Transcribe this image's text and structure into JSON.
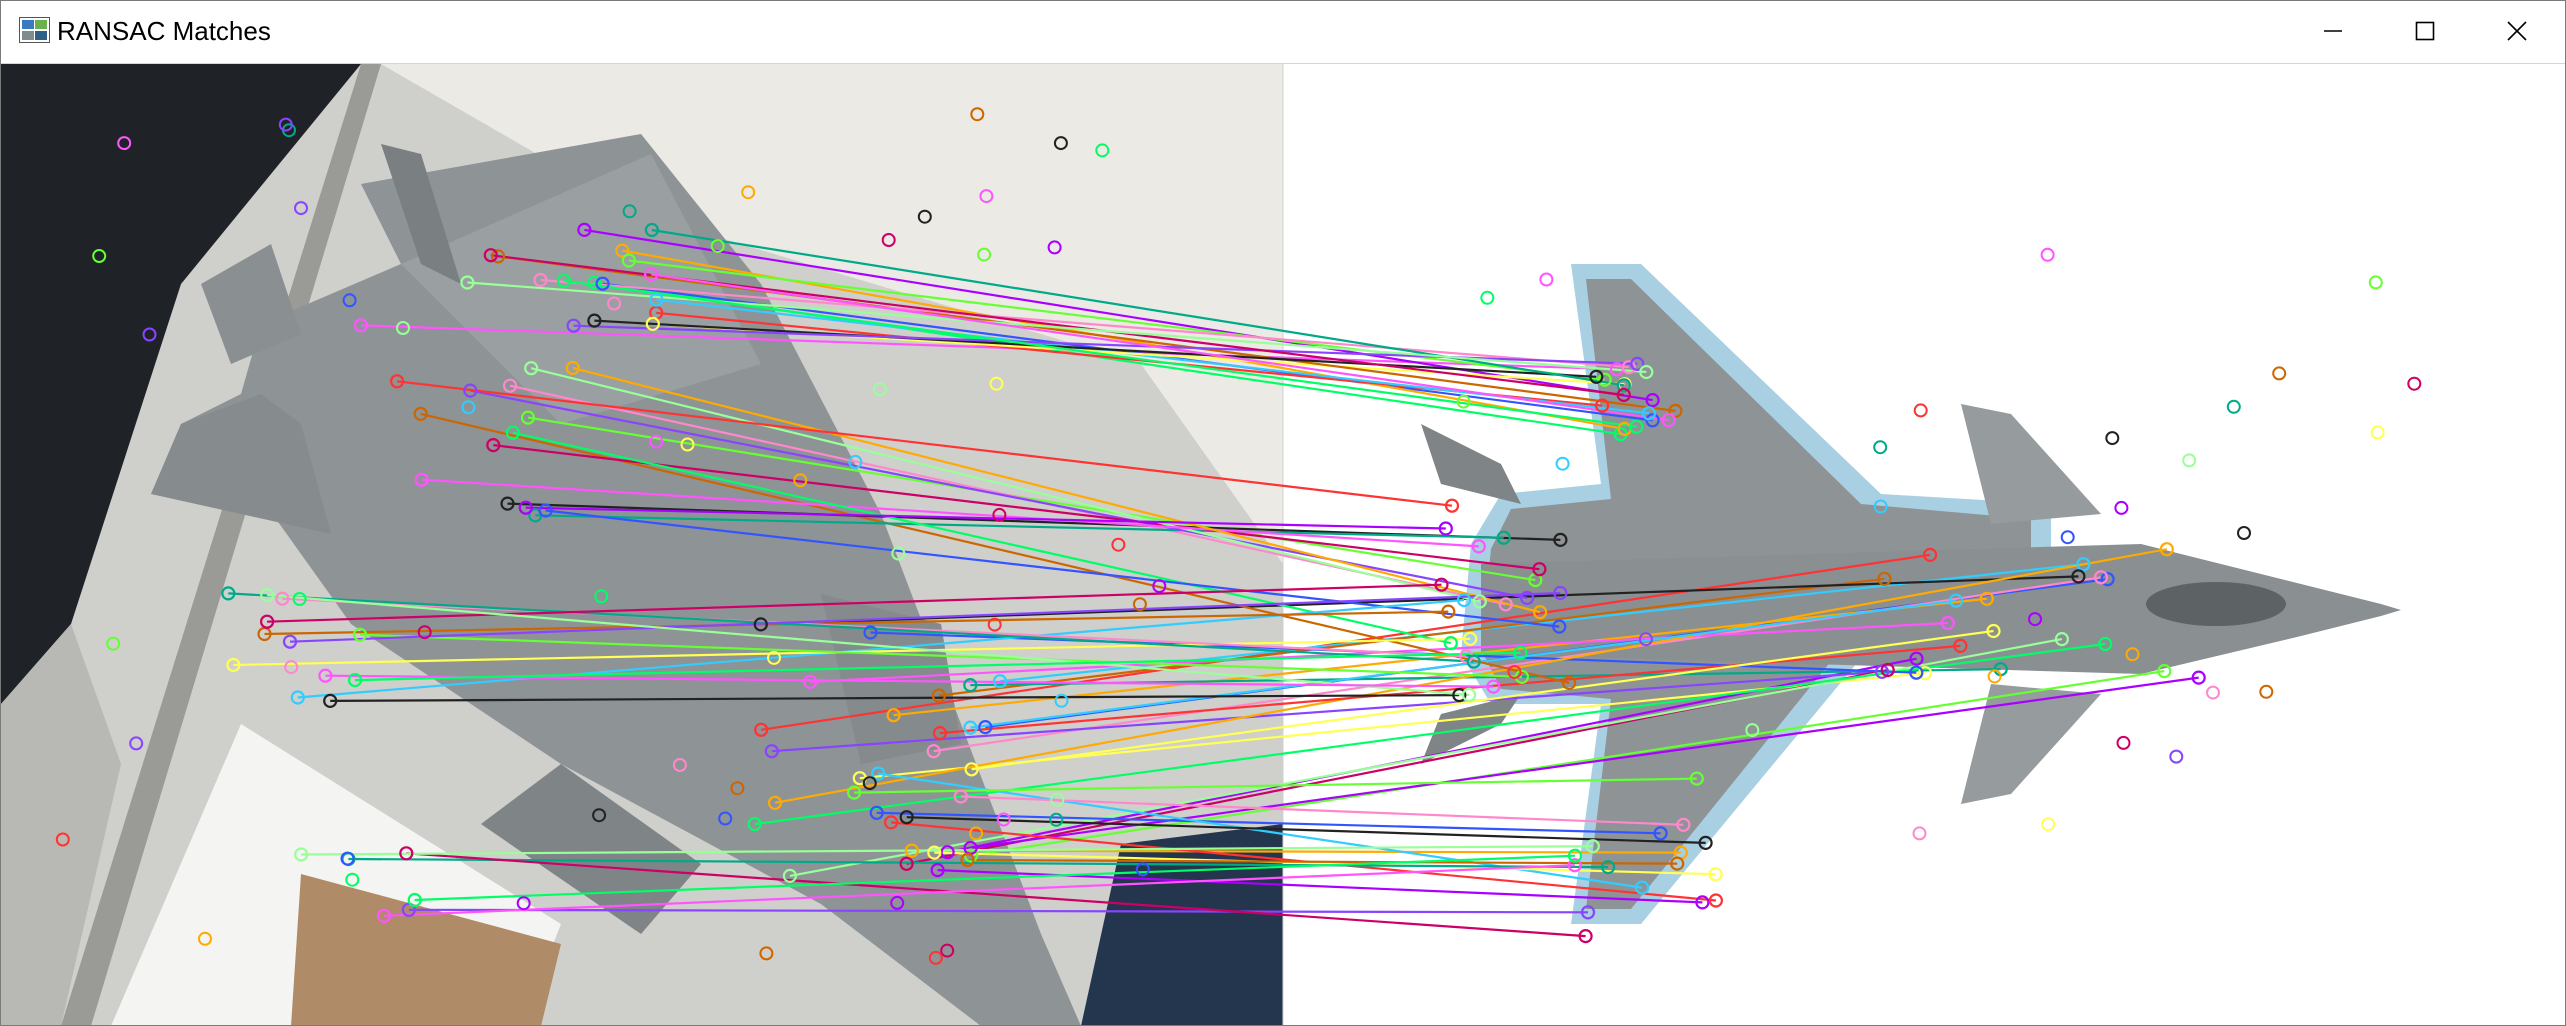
{
  "window": {
    "title": "RANSAC Matches",
    "icon": "image-viewer-icon",
    "controls": {
      "minimize_icon": "minimize-icon",
      "maximize_icon": "maximize-icon",
      "close_icon": "close-icon"
    }
  },
  "colors": {
    "left_photo_bg": "#c9c9c6",
    "right_image_bg": "#ffffff",
    "aircraft_grey": "#8f9497",
    "aircraft_edge_blue": "#a9cfe3"
  }
}
